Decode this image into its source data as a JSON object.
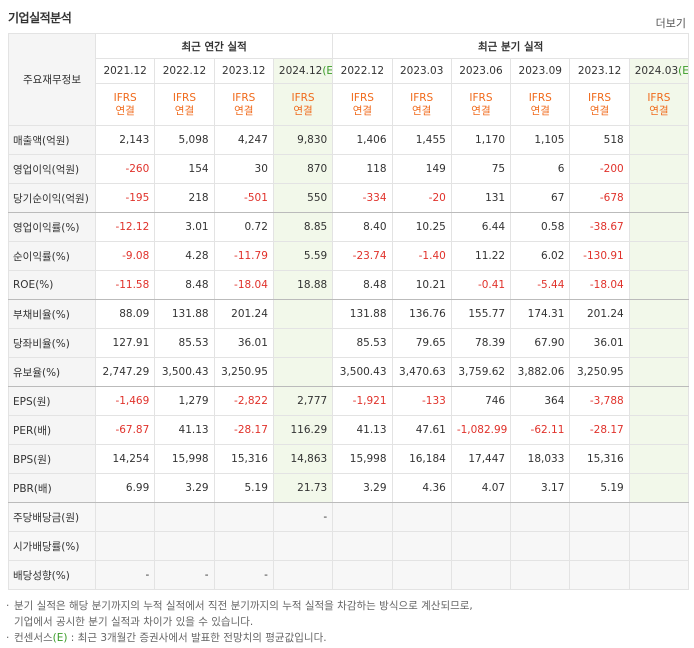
{
  "title": "기업실적분석",
  "more": "더보기",
  "header": {
    "row_label": "주요재무정보",
    "groups": [
      {
        "label": "최근 연간 실적",
        "span": 4
      },
      {
        "label": "최근 분기 실적",
        "span": 6
      }
    ],
    "periods": [
      {
        "text": "2021.12"
      },
      {
        "text": "2022.12"
      },
      {
        "text": "2023.12"
      },
      {
        "text": "2024.12",
        "estimate": "(E)"
      },
      {
        "text": "2022.12"
      },
      {
        "text": "2023.03"
      },
      {
        "text": "2023.06"
      },
      {
        "text": "2023.09"
      },
      {
        "text": "2023.12"
      },
      {
        "text": "2024.03",
        "estimate": "(E)"
      }
    ],
    "basis": [
      [
        "IFRS",
        "연결"
      ],
      [
        "IFRS",
        "연결"
      ],
      [
        "IFRS",
        "연결"
      ],
      [
        "IFRS",
        "연결"
      ],
      [
        "IFRS",
        "연결"
      ],
      [
        "IFRS",
        "연결"
      ],
      [
        "IFRS",
        "연결"
      ],
      [
        "IFRS",
        "연결"
      ],
      [
        "IFRS",
        "연결"
      ],
      [
        "IFRS",
        "연결"
      ]
    ]
  },
  "table": {
    "rows": [
      {
        "label": "매출액(억원)",
        "cells": [
          "2,143",
          "5,098",
          "4,247",
          "9,830",
          "1,406",
          "1,455",
          "1,170",
          "1,105",
          "518",
          null
        ]
      },
      {
        "label": "영업이익(억원)",
        "cells": [
          "-260",
          "154",
          "30",
          "870",
          "118",
          "149",
          "75",
          "6",
          "-200",
          null
        ]
      },
      {
        "label": "당기순이익(억원)",
        "cells": [
          "-195",
          "218",
          "-501",
          "550",
          "-334",
          "-20",
          "131",
          "67",
          "-678",
          null
        ],
        "section_end": true
      },
      {
        "label": "영업이익률(%)",
        "cells": [
          "-12.12",
          "3.01",
          "0.72",
          "8.85",
          "8.40",
          "10.25",
          "6.44",
          "0.58",
          "-38.67",
          null
        ]
      },
      {
        "label": "순이익률(%)",
        "cells": [
          "-9.08",
          "4.28",
          "-11.79",
          "5.59",
          "-23.74",
          "-1.40",
          "11.22",
          "6.02",
          "-130.91",
          null
        ]
      },
      {
        "label": "ROE(%)",
        "cells": [
          "-11.58",
          "8.48",
          "-18.04",
          "18.88",
          "8.48",
          "10.21",
          "-0.41",
          "-5.44",
          "-18.04",
          null
        ],
        "section_end": true
      },
      {
        "label": "부채비율(%)",
        "cells": [
          "88.09",
          "131.88",
          "201.24",
          null,
          "131.88",
          "136.76",
          "155.77",
          "174.31",
          "201.24",
          null
        ]
      },
      {
        "label": "당좌비율(%)",
        "cells": [
          "127.91",
          "85.53",
          "36.01",
          null,
          "85.53",
          "79.65",
          "78.39",
          "67.90",
          "36.01",
          null
        ]
      },
      {
        "label": "유보율(%)",
        "cells": [
          "2,747.29",
          "3,500.43",
          "3,250.95",
          null,
          "3,500.43",
          "3,470.63",
          "3,759.62",
          "3,882.06",
          "3,250.95",
          null
        ],
        "section_end": true
      },
      {
        "label": "EPS(원)",
        "cells": [
          "-1,469",
          "1,279",
          "-2,822",
          "2,777",
          "-1,921",
          "-133",
          "746",
          "364",
          "-3,788",
          null
        ]
      },
      {
        "label": "PER(배)",
        "cells": [
          "-67.87",
          "41.13",
          "-28.17",
          "116.29",
          "41.13",
          "47.61",
          "-1,082.99",
          "-62.11",
          "-28.17",
          null
        ]
      },
      {
        "label": "BPS(원)",
        "cells": [
          "14,254",
          "15,998",
          "15,316",
          "14,863",
          "15,998",
          "16,184",
          "17,447",
          "18,033",
          "15,316",
          null
        ]
      },
      {
        "label": "PBR(배)",
        "cells": [
          "6.99",
          "3.29",
          "5.19",
          "21.73",
          "3.29",
          "4.36",
          "4.07",
          "3.17",
          "5.19",
          null
        ],
        "section_end": true
      },
      {
        "label": "주당배당금(원)",
        "cells": [
          null,
          null,
          null,
          "-",
          null,
          null,
          null,
          null,
          null,
          null
        ],
        "shaded": true
      },
      {
        "label": "시가배당률(%)",
        "cells": [
          null,
          null,
          null,
          null,
          null,
          null,
          null,
          null,
          null,
          null
        ],
        "shaded": true
      },
      {
        "label": "배당성향(%)",
        "cells": [
          "-",
          "-",
          "-",
          null,
          null,
          null,
          null,
          null,
          null,
          null
        ],
        "shaded": true
      }
    ]
  },
  "notes": [
    {
      "text": "분기 실적은 해당 분기까지의 누적 실적에서 직전 분기까지의 누적 실적을 차감하는 방식으로 계산되므로,",
      "cont": "기업에서 공시한 분기 실적과 차이가 있을 수 있습니다."
    },
    {
      "text": "컨센서스",
      "mark": "(E)",
      "cont": " : 최근 3개월간 증권사에서 발표한 전망치의 평균값입니다."
    }
  ]
}
